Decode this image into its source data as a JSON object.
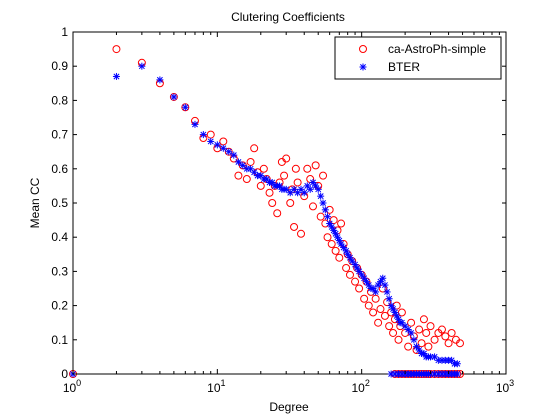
{
  "chart_data": {
    "type": "scatter",
    "title": "Clutering Coefficients",
    "xlabel": "Degree",
    "ylabel": "Mean CC",
    "xscale": "log",
    "xlim": [
      1,
      1000
    ],
    "ylim": [
      0,
      1
    ],
    "grid": false,
    "legend_position": "top-right",
    "x_ticks": [
      {
        "value": 1,
        "base": "10",
        "exp": "0"
      },
      {
        "value": 10,
        "base": "10",
        "exp": "1"
      },
      {
        "value": 100,
        "base": "10",
        "exp": "2"
      },
      {
        "value": 1000,
        "base": "10",
        "exp": "3"
      }
    ],
    "y_ticks": [
      {
        "value": 0,
        "label": "0"
      },
      {
        "value": 0.1,
        "label": "0.1"
      },
      {
        "value": 0.2,
        "label": "0.2"
      },
      {
        "value": 0.3,
        "label": "0.3"
      },
      {
        "value": 0.4,
        "label": "0.4"
      },
      {
        "value": 0.5,
        "label": "0.5"
      },
      {
        "value": 0.6,
        "label": "0.6"
      },
      {
        "value": 0.7,
        "label": "0.7"
      },
      {
        "value": 0.8,
        "label": "0.8"
      },
      {
        "value": 0.9,
        "label": "0.9"
      },
      {
        "value": 1,
        "label": "1"
      }
    ],
    "series": [
      {
        "name": "ca-AstroPh-simple",
        "marker": "circle",
        "color": "#ff0000",
        "points": [
          [
            1,
            0
          ],
          [
            2,
            0.95
          ],
          [
            3,
            0.91
          ],
          [
            4,
            0.85
          ],
          [
            5,
            0.81
          ],
          [
            6,
            0.78
          ],
          [
            7,
            0.74
          ],
          [
            8,
            0.69
          ],
          [
            9,
            0.7
          ],
          [
            10,
            0.66
          ],
          [
            11,
            0.68
          ],
          [
            12,
            0.65
          ],
          [
            13,
            0.63
          ],
          [
            14,
            0.58
          ],
          [
            15,
            0.61
          ],
          [
            16,
            0.57
          ],
          [
            17,
            0.62
          ],
          [
            18,
            0.66
          ],
          [
            19,
            0.59
          ],
          [
            20,
            0.55
          ],
          [
            21,
            0.6
          ],
          [
            22,
            0.57
          ],
          [
            23,
            0.53
          ],
          [
            24,
            0.5
          ],
          [
            25,
            0.55
          ],
          [
            26,
            0.47
          ],
          [
            27,
            0.56
          ],
          [
            28,
            0.62
          ],
          [
            29,
            0.58
          ],
          [
            30,
            0.63
          ],
          [
            32,
            0.5
          ],
          [
            33,
            0.54
          ],
          [
            34,
            0.43
          ],
          [
            35,
            0.6
          ],
          [
            36,
            0.56
          ],
          [
            38,
            0.41
          ],
          [
            40,
            0.52
          ],
          [
            42,
            0.6
          ],
          [
            44,
            0.57
          ],
          [
            46,
            0.49
          ],
          [
            48,
            0.61
          ],
          [
            50,
            0.55
          ],
          [
            52,
            0.46
          ],
          [
            54,
            0.58
          ],
          [
            56,
            0.44
          ],
          [
            58,
            0.4
          ],
          [
            60,
            0.48
          ],
          [
            62,
            0.38
          ],
          [
            64,
            0.45
          ],
          [
            66,
            0.36
          ],
          [
            68,
            0.42
          ],
          [
            70,
            0.34
          ],
          [
            72,
            0.44
          ],
          [
            75,
            0.38
          ],
          [
            78,
            0.31
          ],
          [
            80,
            0.35
          ],
          [
            83,
            0.29
          ],
          [
            86,
            0.33
          ],
          [
            90,
            0.27
          ],
          [
            93,
            0.31
          ],
          [
            96,
            0.25
          ],
          [
            100,
            0.29
          ],
          [
            104,
            0.22
          ],
          [
            108,
            0.27
          ],
          [
            112,
            0.2
          ],
          [
            116,
            0.24
          ],
          [
            120,
            0.18
          ],
          [
            125,
            0.22
          ],
          [
            130,
            0.15
          ],
          [
            135,
            0.19
          ],
          [
            140,
            0.25
          ],
          [
            145,
            0.17
          ],
          [
            150,
            0.21
          ],
          [
            155,
            0.14
          ],
          [
            160,
            0.18
          ],
          [
            165,
            0.12
          ],
          [
            170,
            0.16
          ],
          [
            175,
            0.2
          ],
          [
            180,
            0.1
          ],
          [
            185,
            0.14
          ],
          [
            190,
            0.18
          ],
          [
            200,
            0.12
          ],
          [
            210,
            0.08
          ],
          [
            220,
            0.15
          ],
          [
            230,
            0.11
          ],
          [
            240,
            0.07
          ],
          [
            250,
            0.13
          ],
          [
            260,
            0.09
          ],
          [
            270,
            0.16
          ],
          [
            280,
            0.12
          ],
          [
            290,
            0.08
          ],
          [
            300,
            0.14
          ],
          [
            320,
            0.1
          ],
          [
            340,
            0.12
          ],
          [
            360,
            0.13
          ],
          [
            380,
            0.11
          ],
          [
            400,
            0.09
          ],
          [
            420,
            0.12
          ],
          [
            450,
            0.1
          ],
          [
            480,
            0.09
          ],
          [
            170,
            0
          ],
          [
            180,
            0
          ],
          [
            190,
            0
          ],
          [
            200,
            0
          ],
          [
            210,
            0
          ],
          [
            220,
            0
          ],
          [
            230,
            0
          ],
          [
            240,
            0
          ],
          [
            250,
            0
          ],
          [
            260,
            0
          ],
          [
            270,
            0
          ],
          [
            280,
            0
          ],
          [
            290,
            0
          ],
          [
            300,
            0
          ],
          [
            320,
            0
          ],
          [
            340,
            0
          ],
          [
            360,
            0
          ],
          [
            380,
            0
          ],
          [
            400,
            0
          ],
          [
            420,
            0
          ],
          [
            440,
            0
          ],
          [
            460,
            0
          ],
          [
            480,
            0
          ]
        ]
      },
      {
        "name": "BTER",
        "marker": "asterisk",
        "color": "#0000ff",
        "points": [
          [
            1,
            0
          ],
          [
            2,
            0.87
          ],
          [
            3,
            0.9
          ],
          [
            4,
            0.86
          ],
          [
            5,
            0.81
          ],
          [
            6,
            0.78
          ],
          [
            7,
            0.73
          ],
          [
            8,
            0.7
          ],
          [
            9,
            0.68
          ],
          [
            10,
            0.67
          ],
          [
            11,
            0.66
          ],
          [
            12,
            0.65
          ],
          [
            13,
            0.64
          ],
          [
            14,
            0.62
          ],
          [
            15,
            0.61
          ],
          [
            16,
            0.6
          ],
          [
            17,
            0.6
          ],
          [
            18,
            0.59
          ],
          [
            19,
            0.58
          ],
          [
            20,
            0.58
          ],
          [
            21,
            0.57
          ],
          [
            22,
            0.57
          ],
          [
            23,
            0.56
          ],
          [
            24,
            0.56
          ],
          [
            25,
            0.55
          ],
          [
            26,
            0.55
          ],
          [
            27,
            0.55
          ],
          [
            28,
            0.54
          ],
          [
            29,
            0.54
          ],
          [
            30,
            0.54
          ],
          [
            32,
            0.53
          ],
          [
            34,
            0.54
          ],
          [
            36,
            0.53
          ],
          [
            38,
            0.54
          ],
          [
            40,
            0.53
          ],
          [
            42,
            0.55
          ],
          [
            44,
            0.54
          ],
          [
            46,
            0.56
          ],
          [
            48,
            0.55
          ],
          [
            50,
            0.54
          ],
          [
            52,
            0.52
          ],
          [
            54,
            0.5
          ],
          [
            56,
            0.48
          ],
          [
            58,
            0.46
          ],
          [
            60,
            0.44
          ],
          [
            62,
            0.43
          ],
          [
            64,
            0.42
          ],
          [
            66,
            0.41
          ],
          [
            68,
            0.4
          ],
          [
            70,
            0.39
          ],
          [
            72,
            0.38
          ],
          [
            75,
            0.37
          ],
          [
            78,
            0.36
          ],
          [
            80,
            0.35
          ],
          [
            83,
            0.34
          ],
          [
            86,
            0.33
          ],
          [
            90,
            0.32
          ],
          [
            93,
            0.31
          ],
          [
            96,
            0.3
          ],
          [
            100,
            0.29
          ],
          [
            104,
            0.28
          ],
          [
            108,
            0.27
          ],
          [
            112,
            0.26
          ],
          [
            116,
            0.25
          ],
          [
            120,
            0.25
          ],
          [
            125,
            0.24
          ],
          [
            130,
            0.26
          ],
          [
            135,
            0.27
          ],
          [
            140,
            0.28
          ],
          [
            145,
            0.26
          ],
          [
            150,
            0.24
          ],
          [
            155,
            0.22
          ],
          [
            160,
            0.2
          ],
          [
            165,
            0.19
          ],
          [
            170,
            0.18
          ],
          [
            175,
            0.17
          ],
          [
            180,
            0.16
          ],
          [
            185,
            0.15
          ],
          [
            190,
            0.15
          ],
          [
            200,
            0.14
          ],
          [
            210,
            0.13
          ],
          [
            220,
            0.12
          ],
          [
            230,
            0.1
          ],
          [
            240,
            0.08
          ],
          [
            250,
            0.07
          ],
          [
            260,
            0.06
          ],
          [
            270,
            0.06
          ],
          [
            280,
            0.05
          ],
          [
            290,
            0.05
          ],
          [
            300,
            0.05
          ],
          [
            320,
            0.05
          ],
          [
            340,
            0.04
          ],
          [
            360,
            0.04
          ],
          [
            380,
            0.04
          ],
          [
            400,
            0.04
          ],
          [
            420,
            0.04
          ],
          [
            440,
            0.03
          ],
          [
            460,
            0.03
          ],
          [
            160,
            0
          ],
          [
            170,
            0
          ],
          [
            180,
            0
          ],
          [
            190,
            0
          ],
          [
            200,
            0
          ],
          [
            210,
            0
          ],
          [
            220,
            0
          ],
          [
            230,
            0
          ],
          [
            240,
            0
          ],
          [
            250,
            0
          ],
          [
            260,
            0
          ],
          [
            270,
            0
          ],
          [
            280,
            0
          ],
          [
            290,
            0
          ],
          [
            300,
            0
          ],
          [
            320,
            0
          ],
          [
            340,
            0
          ],
          [
            360,
            0
          ],
          [
            380,
            0
          ],
          [
            400,
            0
          ],
          [
            420,
            0
          ],
          [
            440,
            0
          ],
          [
            460,
            0
          ]
        ]
      }
    ]
  }
}
